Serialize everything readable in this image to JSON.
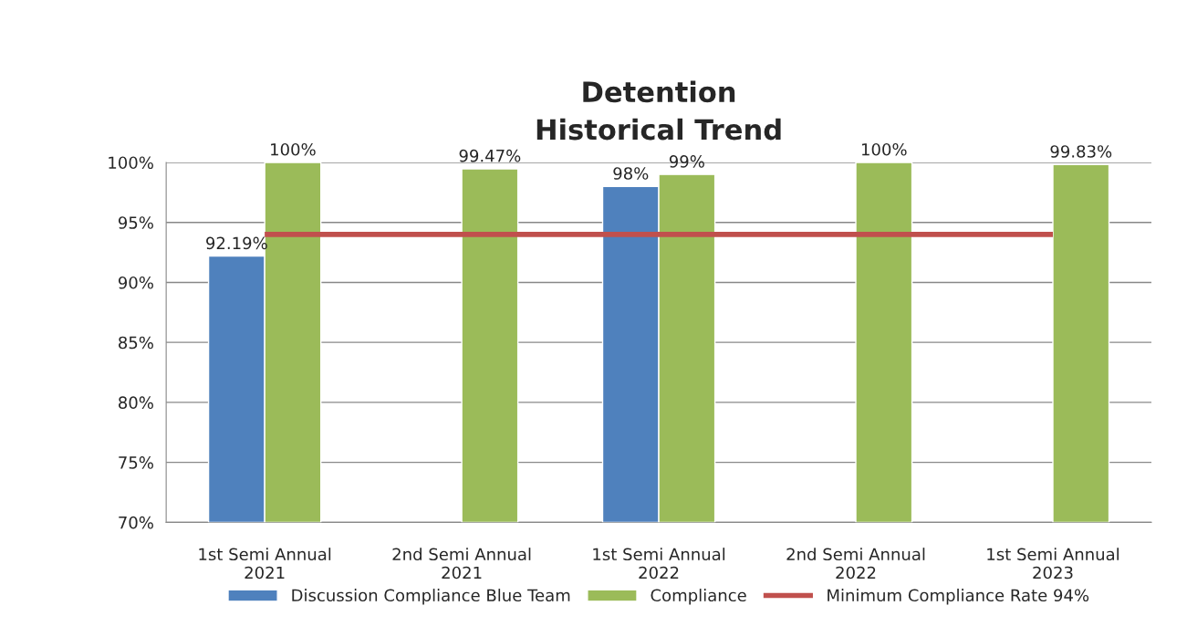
{
  "chart_data": {
    "type": "bar",
    "title": "Detention\nHistorical Trend",
    "categories": [
      "1st Semi Annual\n2021",
      "2nd Semi Annual\n2021",
      "1st Semi Annual\n2022",
      "2nd Semi Annual\n2022",
      "1st Semi Annual\n2023"
    ],
    "series": [
      {
        "name": "Discussion Compliance Blue Team",
        "color": "#4f81bd",
        "values": [
          92.19,
          null,
          98,
          null,
          null
        ],
        "value_labels": [
          "92.19%",
          null,
          "98%",
          null,
          null
        ]
      },
      {
        "name": "Compliance",
        "color": "#9bbb59",
        "values": [
          100,
          99.47,
          99,
          100,
          99.83
        ],
        "value_labels": [
          "100%",
          "99.47%",
          "99%",
          "100%",
          "99.83%"
        ]
      },
      {
        "name": "Minimum Compliance Rate 94%",
        "type": "line",
        "color": "#c0504d",
        "values": [
          94,
          94,
          94,
          94,
          94
        ]
      }
    ],
    "ylim": [
      70,
      100
    ],
    "yticks": [
      {
        "value": 70,
        "label": "70%"
      },
      {
        "value": 75,
        "label": "75%"
      },
      {
        "value": 80,
        "label": "80%"
      },
      {
        "value": 85,
        "label": "85%"
      },
      {
        "value": 90,
        "label": "90%"
      },
      {
        "value": 95,
        "label": "95%"
      },
      {
        "value": 100,
        "label": "100%"
      }
    ],
    "grid": "y",
    "legend": "bottom"
  }
}
